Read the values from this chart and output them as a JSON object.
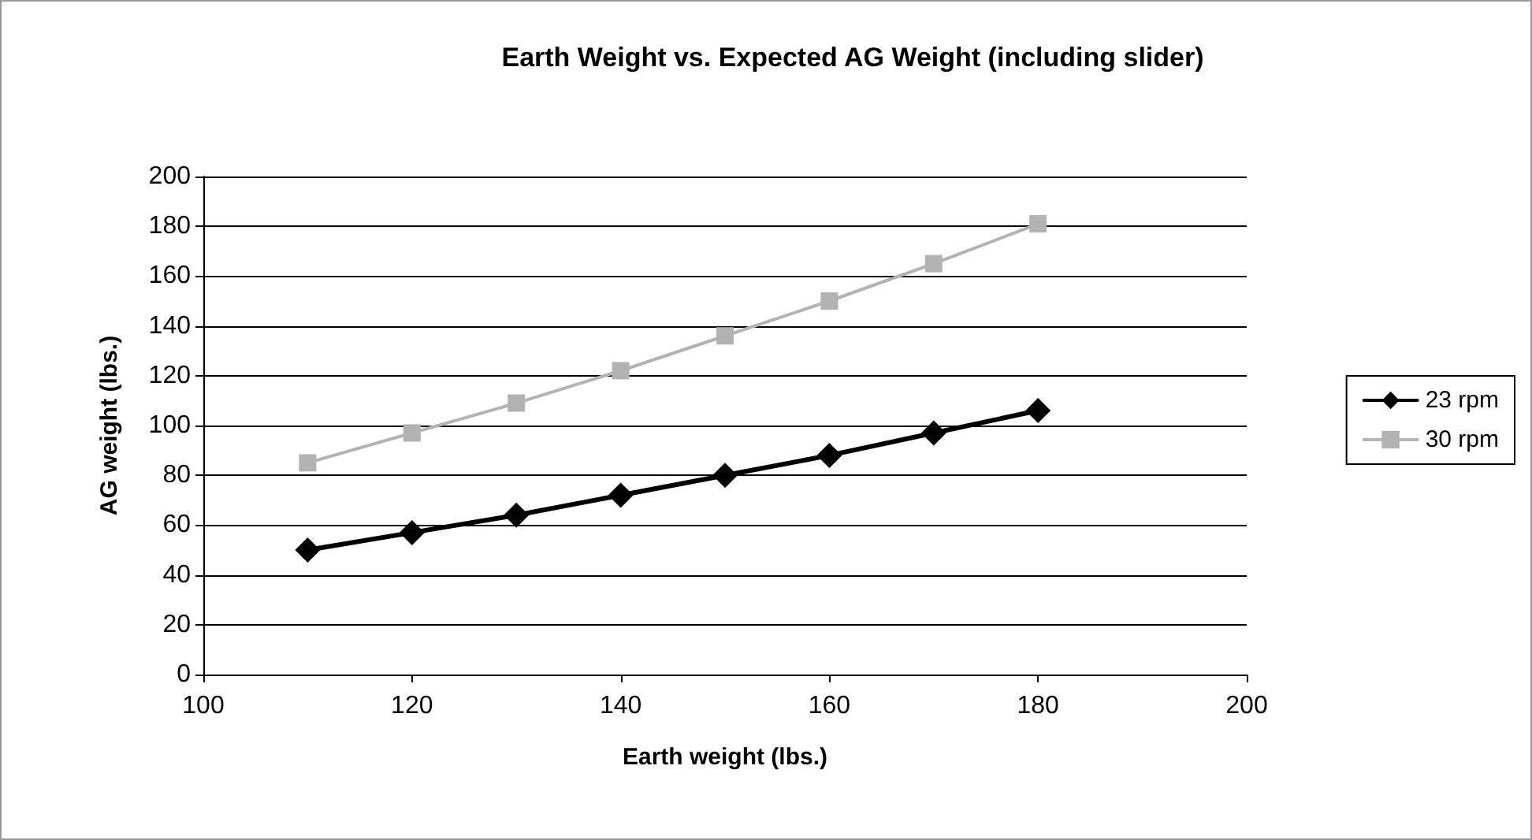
{
  "chart_data": {
    "type": "line",
    "title": "Earth Weight vs. Expected AG Weight (including slider)",
    "xlabel": "Earth weight (lbs.)",
    "ylabel": "AG weight (lbs.)",
    "x": [
      110,
      120,
      130,
      140,
      150,
      160,
      170,
      180
    ],
    "series": [
      {
        "name": "23 rpm",
        "color": "#000000",
        "marker": "diamond",
        "values": [
          50,
          57,
          64,
          72,
          80,
          88,
          97,
          106
        ]
      },
      {
        "name": "30 rpm",
        "color": "#b3b3b3",
        "marker": "square",
        "values": [
          85,
          97,
          109,
          122,
          136,
          150,
          165,
          181
        ]
      }
    ],
    "xlim": [
      100,
      200
    ],
    "xticks": [
      100,
      120,
      140,
      160,
      180,
      200
    ],
    "ylim": [
      0,
      200
    ],
    "yticks": [
      0,
      20,
      40,
      60,
      80,
      100,
      120,
      140,
      160,
      180,
      200
    ],
    "grid": "y",
    "legend": "right",
    "line_style": "solid"
  }
}
